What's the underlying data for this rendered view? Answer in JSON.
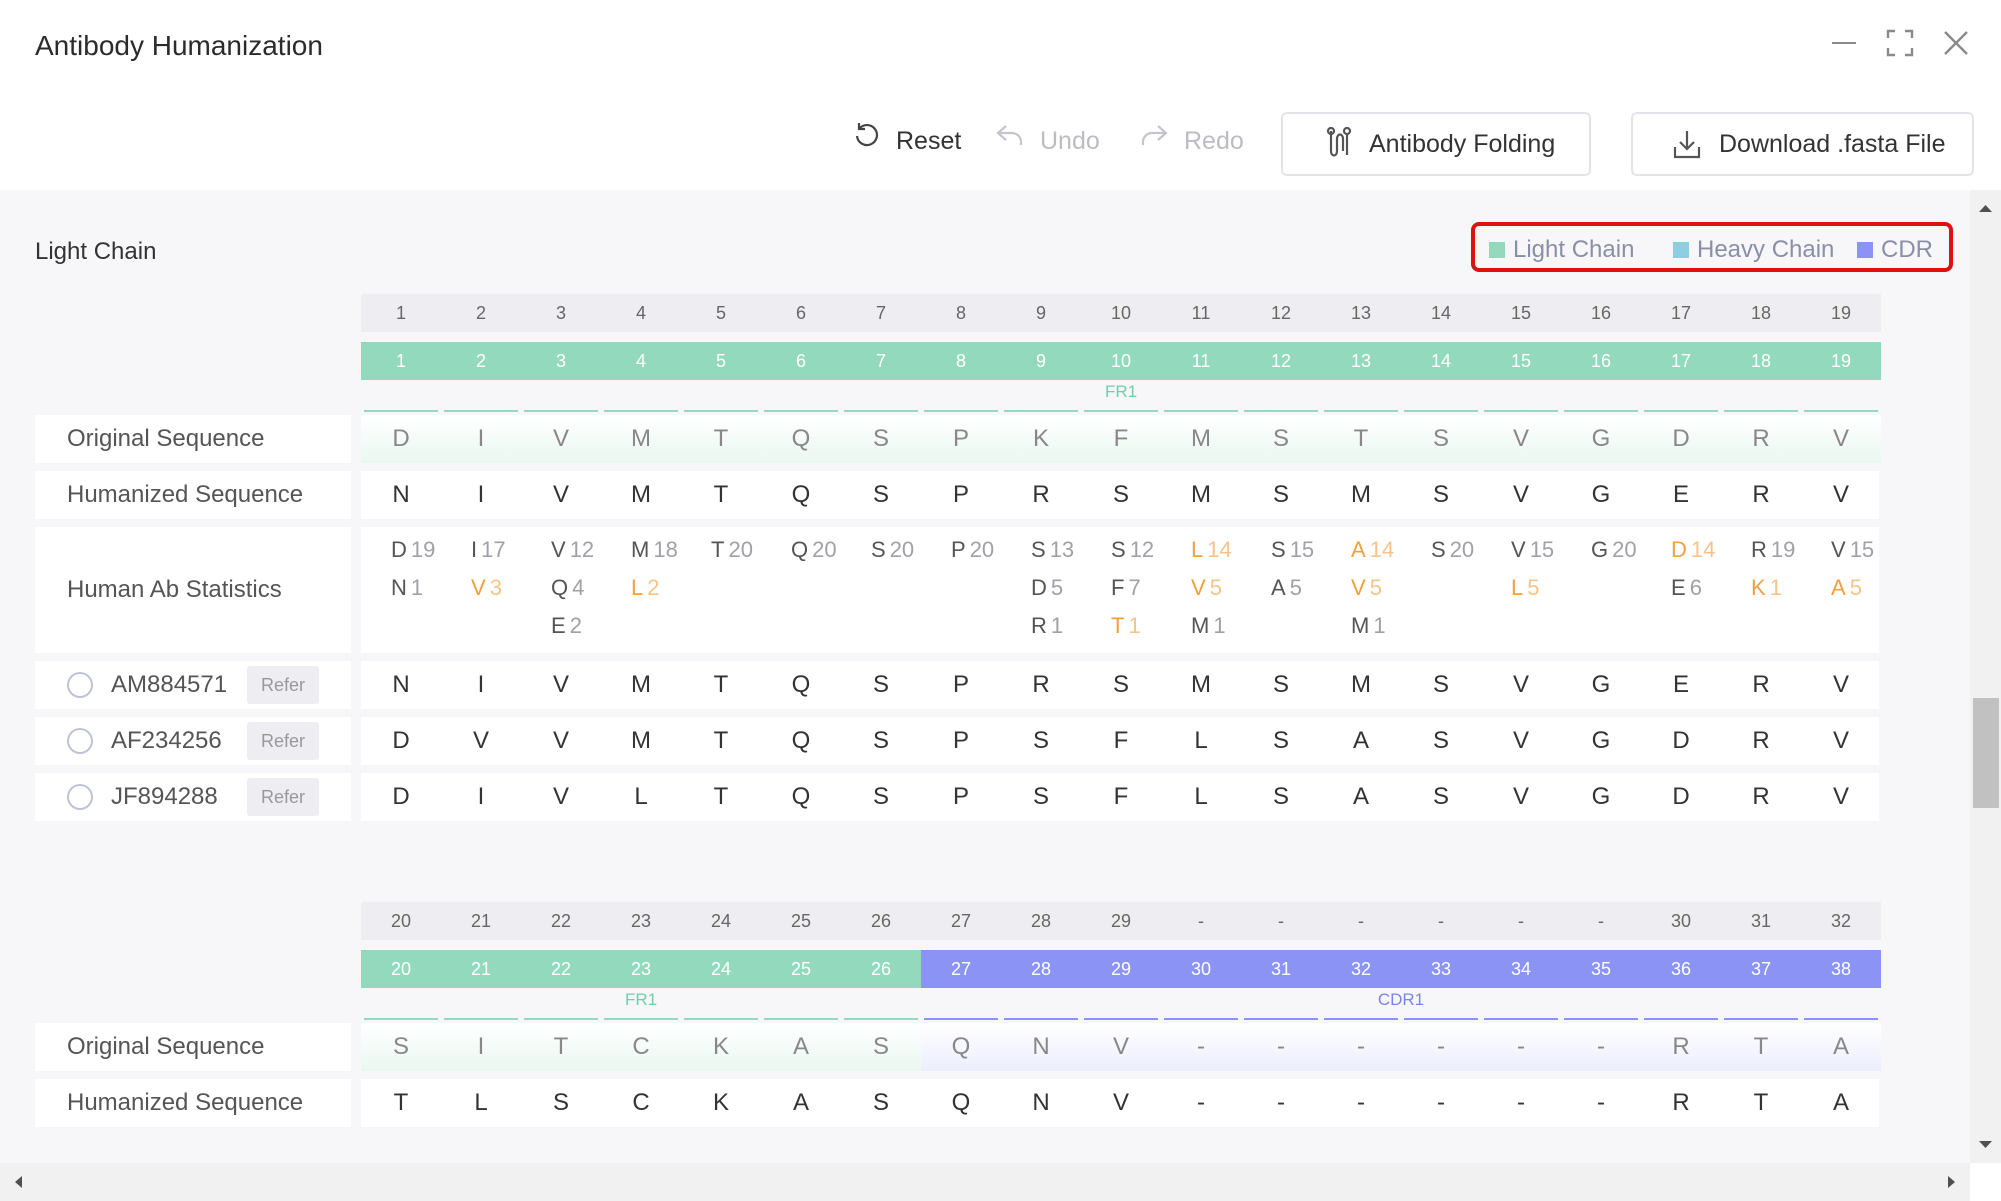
{
  "window": {
    "title": "Antibody Humanization"
  },
  "toolbar": {
    "reset": "Reset",
    "undo": "Undo",
    "redo": "Redo",
    "folding": "Antibody Folding",
    "download": "Download .fasta File"
  },
  "section": {
    "title": "Light Chain"
  },
  "legend": {
    "light": "Light Chain",
    "heavy": "Heavy Chain",
    "cdr": "CDR",
    "colors": {
      "light": "#93d9bd",
      "heavy": "#8ccfe0",
      "cdr": "#8b93f5"
    }
  },
  "labels": {
    "original": "Original Sequence",
    "humanized": "Humanized Sequence",
    "stats": "Human Ab Statistics",
    "refer": "Refer"
  },
  "references": [
    "AM884571",
    "AF234256",
    "JF894288"
  ],
  "block1": {
    "index": [
      "1",
      "2",
      "3",
      "4",
      "5",
      "6",
      "7",
      "8",
      "9",
      "10",
      "11",
      "12",
      "13",
      "14",
      "15",
      "16",
      "17",
      "18",
      "19"
    ],
    "numbering": [
      "1",
      "2",
      "3",
      "4",
      "5",
      "6",
      "7",
      "8",
      "9",
      "10",
      "11",
      "12",
      "13",
      "14",
      "15",
      "16",
      "17",
      "18",
      "19"
    ],
    "regions": [
      {
        "name": "FR1",
        "type": "light",
        "start": 0,
        "end": 18
      }
    ],
    "original": [
      "D",
      "I",
      "V",
      "M",
      "T",
      "Q",
      "S",
      "P",
      "K",
      "F",
      "M",
      "S",
      "T",
      "S",
      "V",
      "G",
      "D",
      "R",
      "V"
    ],
    "humanized": [
      "N",
      "I",
      "V",
      "M",
      "T",
      "Q",
      "S",
      "P",
      "R",
      "S",
      "M",
      "S",
      "M",
      "S",
      "V",
      "G",
      "E",
      "R",
      "V"
    ],
    "stats": [
      [
        {
          "aa": "D",
          "n": "19"
        },
        {
          "aa": "N",
          "n": "1"
        }
      ],
      [
        {
          "aa": "I",
          "n": "17"
        },
        {
          "aa": "V",
          "n": "3",
          "hl": true
        }
      ],
      [
        {
          "aa": "V",
          "n": "12"
        },
        {
          "aa": "Q",
          "n": "4"
        },
        {
          "aa": "E",
          "n": "2"
        }
      ],
      [
        {
          "aa": "M",
          "n": "18"
        },
        {
          "aa": "L",
          "n": "2",
          "hl": true
        }
      ],
      [
        {
          "aa": "T",
          "n": "20"
        }
      ],
      [
        {
          "aa": "Q",
          "n": "20"
        }
      ],
      [
        {
          "aa": "S",
          "n": "20"
        }
      ],
      [
        {
          "aa": "P",
          "n": "20"
        }
      ],
      [
        {
          "aa": "S",
          "n": "13"
        },
        {
          "aa": "D",
          "n": "5"
        },
        {
          "aa": "R",
          "n": "1"
        }
      ],
      [
        {
          "aa": "S",
          "n": "12"
        },
        {
          "aa": "F",
          "n": "7"
        },
        {
          "aa": "T",
          "n": "1",
          "hl": true
        }
      ],
      [
        {
          "aa": "L",
          "n": "14",
          "hl": true
        },
        {
          "aa": "V",
          "n": "5",
          "hl": true
        },
        {
          "aa": "M",
          "n": "1"
        }
      ],
      [
        {
          "aa": "S",
          "n": "15"
        },
        {
          "aa": "A",
          "n": "5"
        }
      ],
      [
        {
          "aa": "A",
          "n": "14",
          "hl": true
        },
        {
          "aa": "V",
          "n": "5",
          "hl": true
        },
        {
          "aa": "M",
          "n": "1"
        }
      ],
      [
        {
          "aa": "S",
          "n": "20"
        }
      ],
      [
        {
          "aa": "V",
          "n": "15"
        },
        {
          "aa": "L",
          "n": "5",
          "hl": true
        }
      ],
      [
        {
          "aa": "G",
          "n": "20"
        }
      ],
      [
        {
          "aa": "D",
          "n": "14",
          "hl": true
        },
        {
          "aa": "E",
          "n": "6"
        }
      ],
      [
        {
          "aa": "R",
          "n": "19"
        },
        {
          "aa": "K",
          "n": "1",
          "hl": true
        }
      ],
      [
        {
          "aa": "V",
          "n": "15"
        },
        {
          "aa": "A",
          "n": "5",
          "hl": true
        }
      ]
    ],
    "refs": [
      [
        "N",
        "I",
        "V",
        "M",
        "T",
        "Q",
        "S",
        "P",
        "R",
        "S",
        "M",
        "S",
        "M",
        "S",
        "V",
        "G",
        "E",
        "R",
        "V"
      ],
      [
        "D",
        "V",
        "V",
        "M",
        "T",
        "Q",
        "S",
        "P",
        "S",
        "F",
        "L",
        "S",
        "A",
        "S",
        "V",
        "G",
        "D",
        "R",
        "V"
      ],
      [
        "D",
        "I",
        "V",
        "L",
        "T",
        "Q",
        "S",
        "P",
        "S",
        "F",
        "L",
        "S",
        "A",
        "S",
        "V",
        "G",
        "D",
        "R",
        "V"
      ]
    ]
  },
  "block2": {
    "index": [
      "20",
      "21",
      "22",
      "23",
      "24",
      "25",
      "26",
      "27",
      "28",
      "29",
      "-",
      "-",
      "-",
      "-",
      "-",
      "-",
      "30",
      "31",
      "32"
    ],
    "numbering": [
      "20",
      "21",
      "22",
      "23",
      "24",
      "25",
      "26",
      "27",
      "28",
      "29",
      "30",
      "31",
      "32",
      "33",
      "34",
      "35",
      "36",
      "37",
      "38"
    ],
    "regions": [
      {
        "name": "FR1",
        "type": "light",
        "start": 0,
        "end": 6
      },
      {
        "name": "CDR1",
        "type": "cdr",
        "start": 7,
        "end": 18
      }
    ],
    "original": [
      "S",
      "I",
      "T",
      "C",
      "K",
      "A",
      "S",
      "Q",
      "N",
      "V",
      "-",
      "-",
      "-",
      "-",
      "-",
      "-",
      "R",
      "T",
      "A"
    ],
    "humanized": [
      "T",
      "L",
      "S",
      "C",
      "K",
      "A",
      "S",
      "Q",
      "N",
      "V",
      "-",
      "-",
      "-",
      "-",
      "-",
      "-",
      "R",
      "T",
      "A"
    ]
  }
}
